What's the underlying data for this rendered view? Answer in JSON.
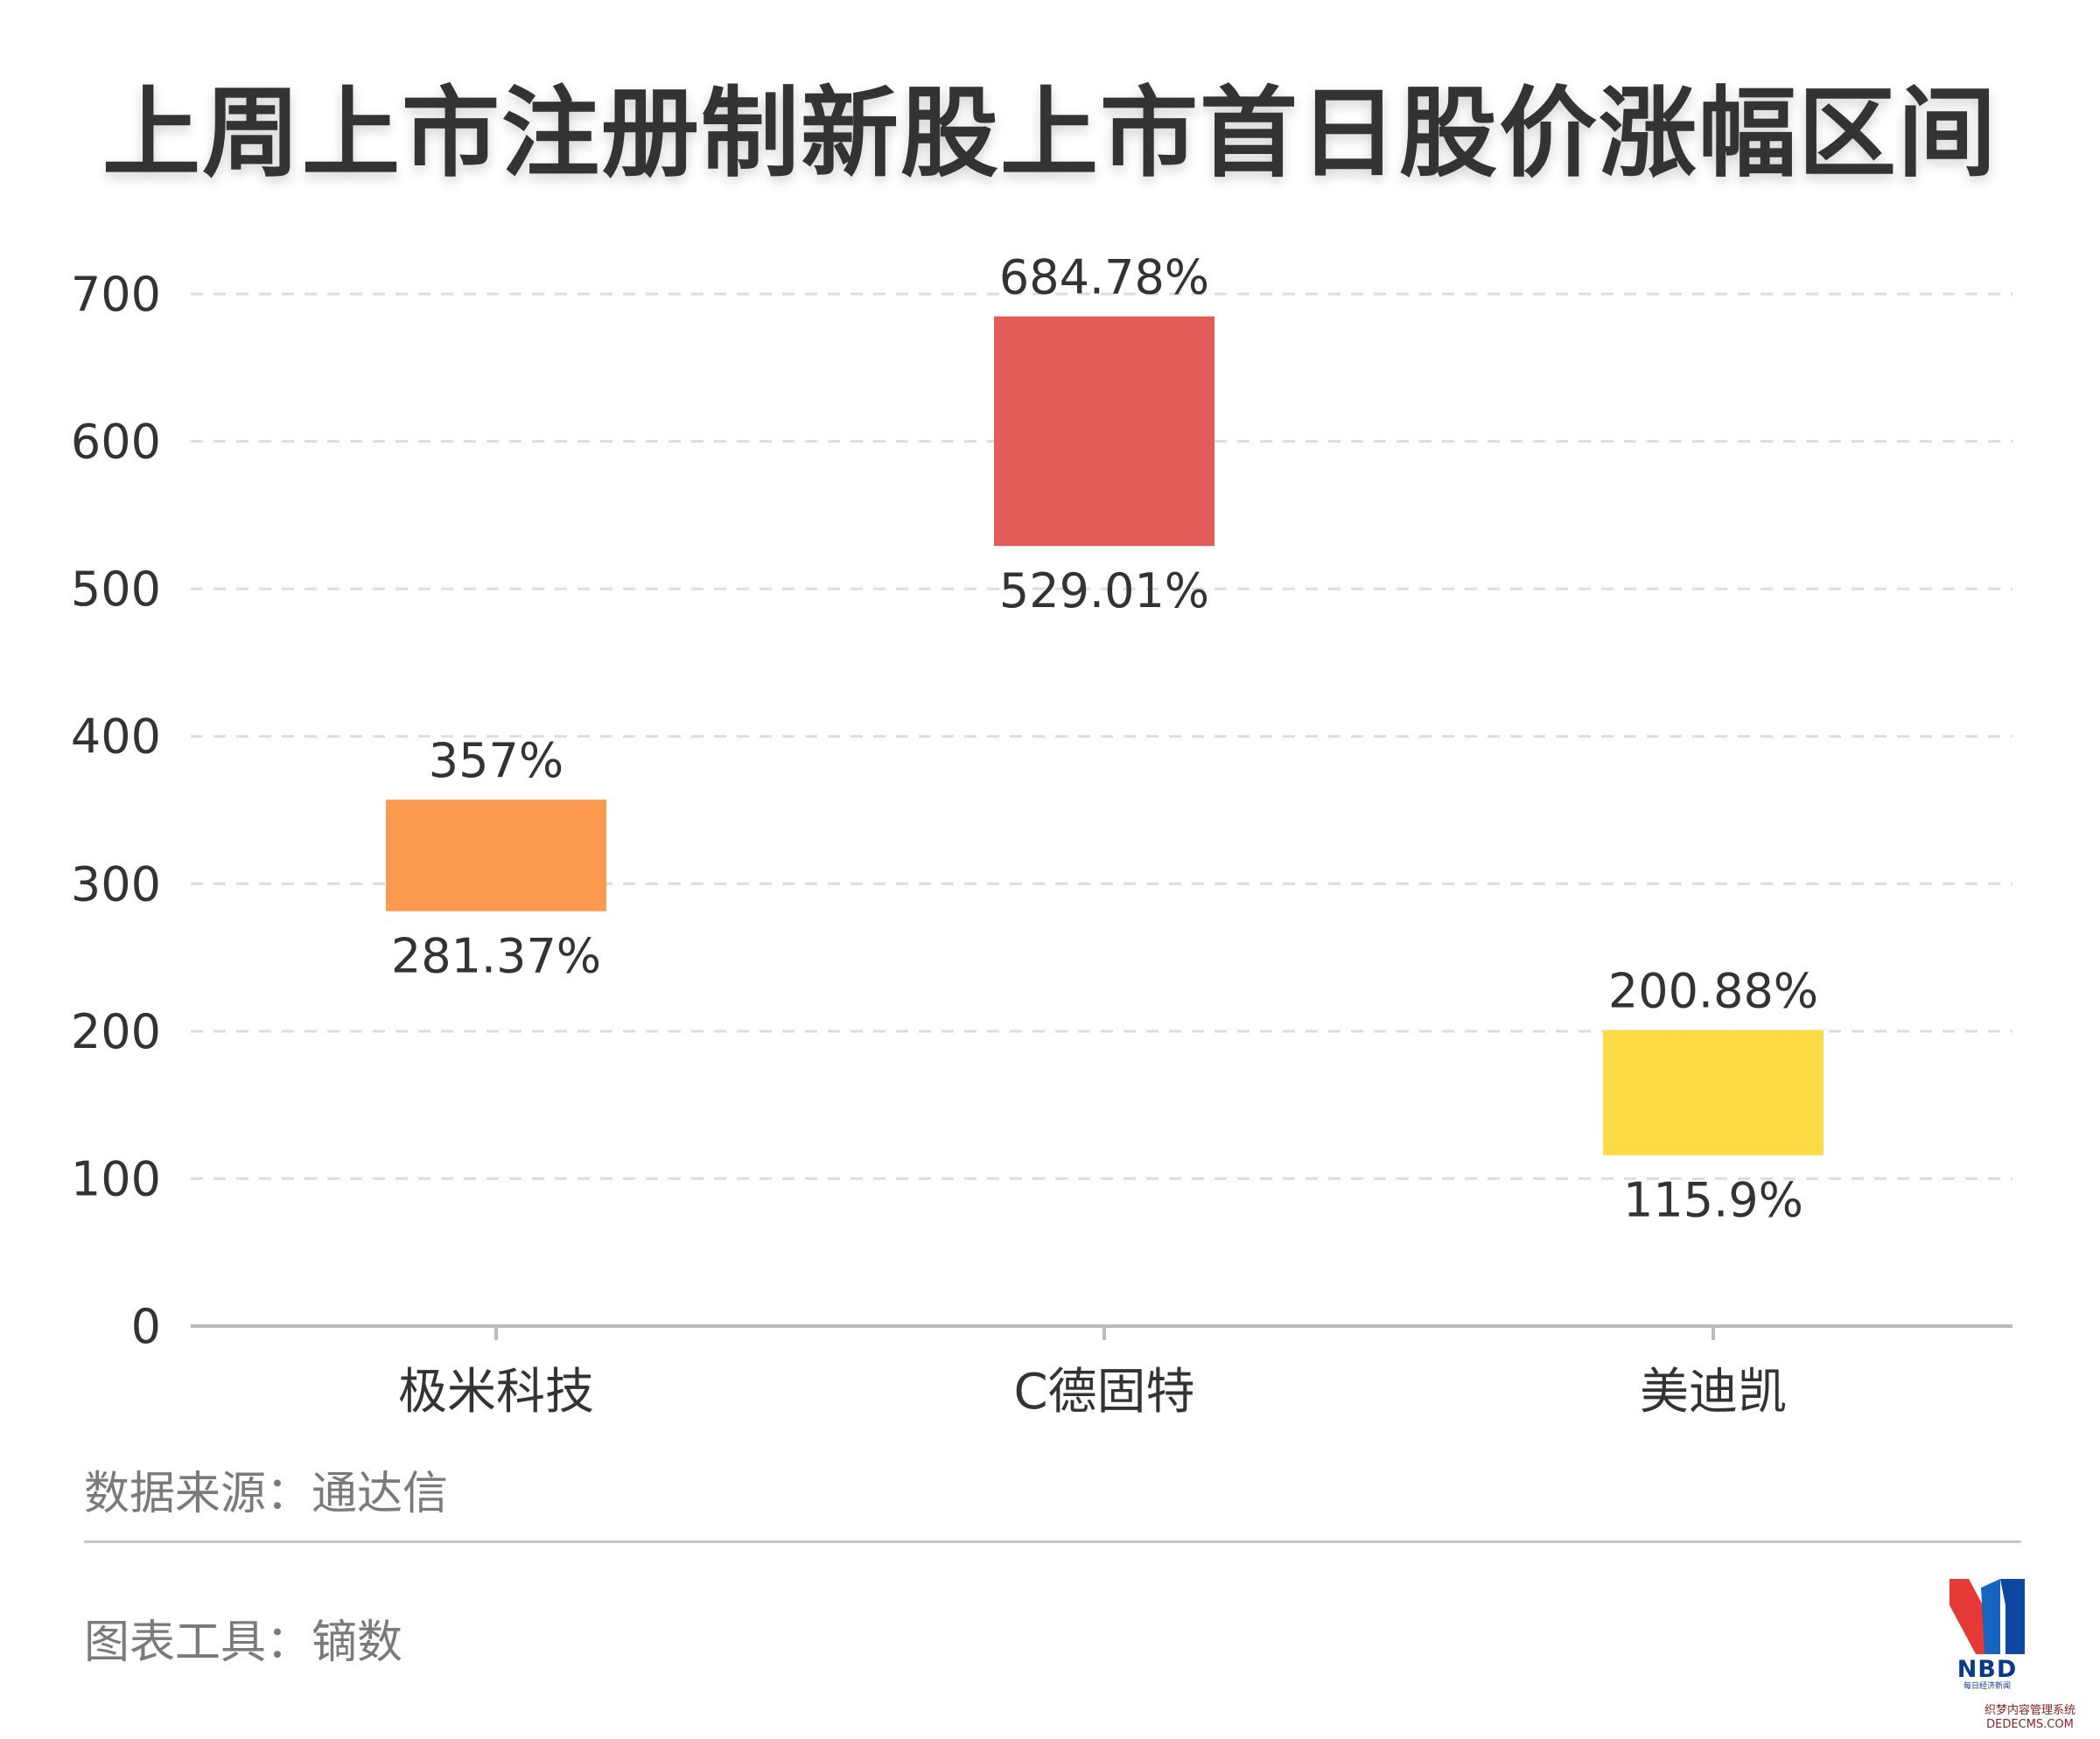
{
  "title": "上周上市注册制新股上市首日股价涨幅区间",
  "source_note": "数据来源：通达信",
  "tool_note": "图表工具：镝数",
  "logo": {
    "text": "NBD",
    "sub": "每日经济新闻"
  },
  "watermark": {
    "line1": "织梦内容管理系统",
    "line2": "DEDECMS.COM"
  },
  "colors": {
    "grid": "#dddddd",
    "axis": "#bbbbbb",
    "label": "#333333",
    "tick": "#333333"
  },
  "chart_data": {
    "type": "floating-bar",
    "title": "上周上市注册制新股上市首日股价涨幅区间",
    "ylim": [
      0,
      700
    ],
    "yticks": [
      0,
      100,
      200,
      300,
      400,
      500,
      600,
      700
    ],
    "grid": "dashed horizontal",
    "categories": [
      "极米科技",
      "C德固特",
      "美迪凯"
    ],
    "low": [
      281.37,
      529.01,
      115.9
    ],
    "high": [
      357,
      684.78,
      200.88
    ],
    "low_labels": [
      "281.37%",
      "529.01%",
      "115.9%"
    ],
    "high_labels": [
      "357%",
      "684.78%",
      "200.88%"
    ],
    "colors": [
      "#fc9a4f",
      "#e35c59",
      "#fddb47"
    ]
  }
}
